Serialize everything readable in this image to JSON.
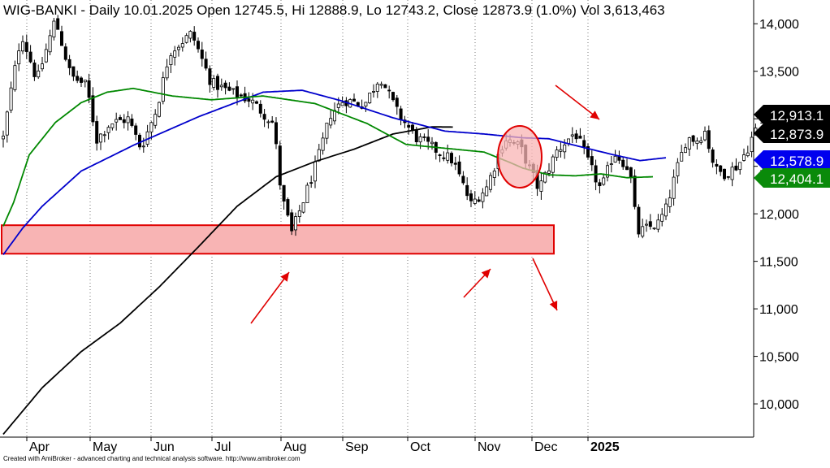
{
  "header": {
    "title": "WIG-BANKI - Daily 10.01.2025 Open 12745.5, Hi 12888.9, Lo 12743.2, Close 12873.9 (1.0%) Vol 3,613,463"
  },
  "footer": {
    "credit": "Created with AmiBroker - advanced charting and technical analysis software. http://www.amibroker.com"
  },
  "chart_data": {
    "type": "candlestick",
    "instrument": "WIG-BANKI",
    "interval": "Daily",
    "last_bar": {
      "date": "10.01.2025",
      "open": 12745.5,
      "high": 12888.9,
      "low": 12743.2,
      "close": 12873.9,
      "change_pct": 1.0,
      "volume": 3613463
    },
    "x_labels": [
      "Apr",
      "May",
      "Jun",
      "Jul",
      "Aug",
      "Sep",
      "Oct",
      "Nov",
      "Dec",
      "2025"
    ],
    "y_ticks": [
      10000,
      10500,
      11000,
      11500,
      12000,
      12500,
      13000,
      13500,
      14000
    ],
    "y_tick_labels": [
      "10,000",
      "10,500",
      "11,000",
      "11,500",
      "12,000",
      "12,500",
      "13,000",
      "13,500",
      "14,000"
    ],
    "ylim": [
      9650,
      14250
    ],
    "grid": true,
    "grid_style": "dotted vertical lines at month starts",
    "price_markers": [
      {
        "label": "12,913.1",
        "value": 12913.1,
        "bg": "#000000",
        "fg": "#ffffff",
        "series": "SMA black"
      },
      {
        "label": "12,873.9",
        "value": 12873.9,
        "bg": "#000000",
        "fg": "#ffffff",
        "series": "Close"
      },
      {
        "label": "12,578.9",
        "value": 12578.9,
        "bg": "#0000ee",
        "fg": "#ffffff",
        "series": "SMA blue"
      },
      {
        "label": "12,404.1",
        "value": 12404.1,
        "bg": "#0a8a0a",
        "fg": "#ffffff",
        "series": "SMA green"
      }
    ],
    "support_zone": {
      "from": 11580,
      "to": 11880,
      "start": "Mar 2024",
      "end": "Dec 2024",
      "fill": "#f8b4b4",
      "stroke": "#e00000"
    },
    "series": [
      {
        "name": "",
        "color": "#000000",
        "type": "moving_average",
        "anchors": [
          [
            0,
            9680
          ],
          [
            30,
            10170
          ],
          [
            60,
            10550
          ],
          [
            90,
            10850
          ],
          [
            120,
            11230
          ],
          [
            150,
            11650
          ],
          [
            180,
            12080
          ],
          [
            210,
            12390
          ],
          [
            240,
            12550
          ],
          [
            270,
            12680
          ],
          [
            300,
            12840
          ],
          [
            330,
            12915
          ],
          [
            346,
            12913
          ]
        ]
      },
      {
        "name": "",
        "color": "#0000cc",
        "type": "moving_average",
        "anchors": [
          [
            0,
            11570
          ],
          [
            15,
            11850
          ],
          [
            30,
            12080
          ],
          [
            60,
            12450
          ],
          [
            100,
            12720
          ],
          [
            150,
            13020
          ],
          [
            200,
            13280
          ],
          [
            230,
            13300
          ],
          [
            260,
            13190
          ],
          [
            300,
            13010
          ],
          [
            340,
            12870
          ],
          [
            370,
            12840
          ],
          [
            400,
            12800
          ],
          [
            420,
            12790
          ],
          [
            440,
            12720
          ],
          [
            470,
            12620
          ],
          [
            490,
            12560
          ],
          [
            510,
            12590
          ]
        ]
      },
      {
        "name": "",
        "color": "#008800",
        "type": "moving_average",
        "anchors": [
          [
            0,
            11870
          ],
          [
            8,
            12120
          ],
          [
            20,
            12620
          ],
          [
            40,
            12960
          ],
          [
            60,
            13170
          ],
          [
            80,
            13280
          ],
          [
            100,
            13320
          ],
          [
            130,
            13240
          ],
          [
            160,
            13200
          ],
          [
            200,
            13240
          ],
          [
            240,
            13160
          ],
          [
            280,
            12950
          ],
          [
            310,
            12730
          ],
          [
            340,
            12690
          ],
          [
            370,
            12650
          ],
          [
            390,
            12540
          ],
          [
            400,
            12480
          ],
          [
            420,
            12410
          ],
          [
            440,
            12400
          ],
          [
            460,
            12420
          ],
          [
            480,
            12380
          ],
          [
            500,
            12390
          ]
        ]
      },
      {
        "name": "",
        "color": "#000000",
        "type": "close",
        "anchors": [
          [
            0,
            12800
          ],
          [
            6,
            13300
          ],
          [
            14,
            13900
          ],
          [
            26,
            13400
          ],
          [
            40,
            14050
          ],
          [
            52,
            13450
          ],
          [
            64,
            13350
          ],
          [
            72,
            12780
          ],
          [
            82,
            12950
          ],
          [
            96,
            13000
          ],
          [
            106,
            12690
          ],
          [
            118,
            13100
          ],
          [
            128,
            13700
          ],
          [
            145,
            13900
          ],
          [
            160,
            13380
          ],
          [
            175,
            13280
          ],
          [
            190,
            13200
          ],
          [
            208,
            12950
          ],
          [
            214,
            12200
          ],
          [
            222,
            11800
          ],
          [
            232,
            12180
          ],
          [
            242,
            12570
          ],
          [
            252,
            13050
          ],
          [
            262,
            13200
          ],
          [
            278,
            13150
          ],
          [
            290,
            13450
          ],
          [
            304,
            13050
          ],
          [
            318,
            12800
          ],
          [
            332,
            12680
          ],
          [
            346,
            12560
          ],
          [
            360,
            12100
          ],
          [
            372,
            12280
          ],
          [
            386,
            12800
          ],
          [
            398,
            12700
          ],
          [
            412,
            12260
          ],
          [
            426,
            12660
          ],
          [
            440,
            12860
          ],
          [
            450,
            12550
          ],
          [
            460,
            12250
          ],
          [
            470,
            12650
          ],
          [
            482,
            12470
          ],
          [
            488,
            11800
          ],
          [
            496,
            11850
          ],
          [
            504,
            11900
          ],
          [
            510,
            12050
          ],
          [
            518,
            12450
          ],
          [
            526,
            12800
          ],
          [
            534,
            12780
          ],
          [
            540,
            12870
          ],
          [
            548,
            12460
          ],
          [
            556,
            12420
          ],
          [
            566,
            12520
          ],
          [
            574,
            12720
          ],
          [
            578,
            12874
          ]
        ]
      }
    ],
    "annotations": [
      {
        "type": "ellipse",
        "color": "#e00000",
        "fill": "#f8b4b4",
        "around": "Nov–Dec cross of the moving averages"
      },
      {
        "type": "arrow",
        "color": "#e00000",
        "direction": "up",
        "target": "August low at support zone"
      },
      {
        "type": "arrow",
        "color": "#e00000",
        "direction": "up",
        "target": "November low at support zone"
      },
      {
        "type": "arrow",
        "color": "#e00000",
        "direction": "down",
        "target": "break below support zone"
      },
      {
        "type": "arrow",
        "color": "#e00000",
        "direction": "down",
        "target": "price toward 12,913.1 level"
      }
    ],
    "colors": {
      "candle_up": "#ffffff",
      "candle_down": "#000000",
      "candle_outline": "#000000",
      "axis_text": "#000000",
      "grid": "#555555"
    }
  }
}
